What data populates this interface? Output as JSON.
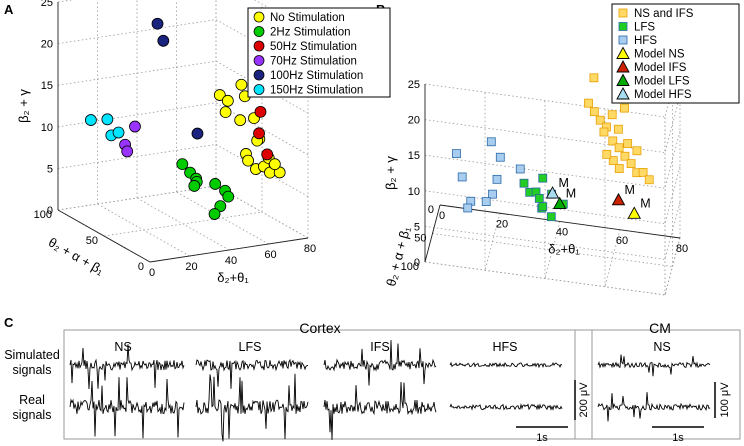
{
  "panels": {
    "a": "A",
    "b": "B",
    "c": "C"
  },
  "chart_data": [
    {
      "id": "A",
      "type": "scatter",
      "projection": "3d",
      "xlabel": "δ₂+θ₁",
      "ylabel": "θ₂ + α + β₁",
      "zlabel": "β₂ + γ",
      "xlim": [
        0,
        80
      ],
      "ylim": [
        0,
        100
      ],
      "zlim": [
        0,
        25
      ],
      "xticks": [
        0,
        20,
        40,
        60,
        80
      ],
      "yticks": [
        0,
        50,
        100
      ],
      "zticks": [
        0,
        5,
        10,
        15,
        20,
        25
      ],
      "legend_position": "top-right",
      "series": [
        {
          "name": "No Stimulation",
          "color": "#ffff00",
          "points": [
            [
              40,
              10,
              18
            ],
            [
              45,
              12,
              17
            ],
            [
              50,
              8,
              19
            ],
            [
              55,
              15,
              17
            ],
            [
              62,
              12,
              21
            ],
            [
              55,
              5,
              15
            ],
            [
              48,
              5,
              15
            ],
            [
              42,
              8,
              16
            ],
            [
              60,
              10,
              12
            ],
            [
              50,
              3,
              11
            ],
            [
              52,
              5,
              10
            ],
            [
              55,
              3,
              9
            ],
            [
              60,
              5,
              9
            ],
            [
              64,
              7,
              8
            ],
            [
              68,
              5,
              8
            ],
            [
              58,
              8,
              12
            ],
            [
              62,
              4,
              10
            ],
            [
              66,
              6,
              9
            ]
          ]
        },
        {
          "name": "2Hz Stimulation",
          "color": "#00cc00",
          "points": [
            [
              35,
              40,
              8
            ],
            [
              38,
              38,
              7
            ],
            [
              42,
              40,
              6
            ],
            [
              40,
              35,
              6
            ],
            [
              42,
              42,
              5
            ],
            [
              40,
              15,
              7
            ],
            [
              45,
              15,
              6
            ],
            [
              48,
              18,
              5
            ],
            [
              44,
              18,
              4
            ],
            [
              42,
              20,
              3
            ]
          ]
        },
        {
          "name": "50Hz Stimulation",
          "color": "#dd0000",
          "points": [
            [
              62,
              13,
              15
            ],
            [
              58,
              6,
              13
            ],
            [
              64,
              10,
              10
            ]
          ]
        },
        {
          "name": "70Hz Stimulation",
          "color": "#9933ff",
          "points": [
            [
              20,
              70,
              9
            ],
            [
              22,
              72,
              8
            ],
            [
              25,
              70,
              11
            ]
          ]
        },
        {
          "name": "100Hz Stimulation",
          "color": "#1a237e",
          "points": [
            [
              42,
              82,
              22
            ],
            [
              44,
              80,
              20
            ],
            [
              45,
              45,
              11
            ]
          ]
        },
        {
          "name": "150Hz Stimulation",
          "color": "#00e5ff",
          "points": [
            [
              25,
              100,
              10
            ],
            [
              27,
              100,
              8
            ],
            [
              26,
              90,
              9
            ],
            [
              12,
              90,
              11
            ]
          ]
        }
      ]
    },
    {
      "id": "B",
      "type": "scatter",
      "projection": "3d",
      "xlabel": "δ₂+θ₁",
      "ylabel": "θ₂ + α + β₁",
      "zlabel": "β₂ + γ",
      "xlim": [
        0,
        80
      ],
      "ylim": [
        0,
        100
      ],
      "zlim": [
        0,
        25
      ],
      "xticks": [
        0,
        20,
        40,
        60,
        80
      ],
      "yticks": [
        0,
        50,
        100
      ],
      "zticks": [
        0,
        5,
        10,
        15,
        20,
        25
      ],
      "legend_position": "top-right",
      "series": [
        {
          "name": "NS and IFS",
          "color": "#ffd966",
          "edge": "#e8a000",
          "shape": "square",
          "points": [
            [
              50,
              10,
              18
            ],
            [
              52,
              11,
              17
            ],
            [
              54,
              12,
              16
            ],
            [
              56,
              10,
              15
            ],
            [
              58,
              12,
              17
            ],
            [
              60,
              11,
              15
            ],
            [
              62,
              10,
              18
            ],
            [
              60,
              14,
              22
            ],
            [
              52,
              14,
              22
            ],
            [
              55,
              7,
              14
            ],
            [
              58,
              8,
              13
            ],
            [
              60,
              6,
              12
            ],
            [
              62,
              7,
              11
            ],
            [
              64,
              6,
              10
            ],
            [
              66,
              8,
              9
            ],
            [
              68,
              6,
              9
            ],
            [
              70,
              5,
              8
            ],
            [
              58,
              5,
              10
            ],
            [
              60,
              5,
              9
            ],
            [
              56,
              8,
              11
            ],
            [
              63,
              9,
              13
            ],
            [
              66,
              7,
              12
            ]
          ]
        },
        {
          "name": "LFS",
          "color": "#22cc22",
          "shape": "square",
          "points": [
            [
              30,
              40,
              8
            ],
            [
              32,
              42,
              7
            ],
            [
              34,
              40,
              7
            ],
            [
              35,
              38,
              6
            ],
            [
              36,
              42,
              5
            ],
            [
              35,
              15,
              7
            ],
            [
              38,
              16,
              5
            ],
            [
              42,
              18,
              4
            ],
            [
              35,
              15,
              3
            ],
            [
              38,
              18,
              2
            ]
          ]
        },
        {
          "name": "HFS",
          "color": "#a8cdef",
          "shape": "square",
          "points": [
            [
              10,
              90,
              15
            ],
            [
              12,
              92,
              12
            ],
            [
              15,
              95,
              9
            ],
            [
              22,
              98,
              18
            ],
            [
              25,
              98,
              16
            ],
            [
              24,
              100,
              13
            ],
            [
              22,
              90,
              10
            ],
            [
              20,
              92,
              9
            ],
            [
              14,
              95,
              8
            ],
            [
              30,
              65,
              12
            ]
          ]
        },
        {
          "name": "Model NS",
          "color": "#ffff00",
          "shape": "triangle",
          "label": "M",
          "points": [
            [
              65,
              5,
              3
            ]
          ]
        },
        {
          "name": "Model IFS",
          "color": "#cc2200",
          "shape": "triangle",
          "label": "M",
          "points": [
            [
              60,
              10,
              5
            ]
          ]
        },
        {
          "name": "Model LFS",
          "color": "#00aa00",
          "shape": "triangle",
          "label": "M",
          "points": [
            [
              42,
              42,
              6
            ]
          ]
        },
        {
          "name": "Model HFS",
          "color": "#a8dcef",
          "shape": "triangle",
          "label": "M",
          "points": [
            [
              40,
              50,
              8
            ]
          ]
        }
      ]
    }
  ],
  "signals": {
    "cortex_title": "Cortex",
    "cm_title": "CM",
    "row_simulated": [
      "Simulated",
      "signals"
    ],
    "row_real": [
      "Real",
      "signals"
    ],
    "columns": [
      "NS",
      "LFS",
      "IFS",
      "HFS"
    ],
    "cm_column": "NS",
    "scale_cortex": "200 μV",
    "scale_cm": "100 μV",
    "time_scale": "1s"
  }
}
